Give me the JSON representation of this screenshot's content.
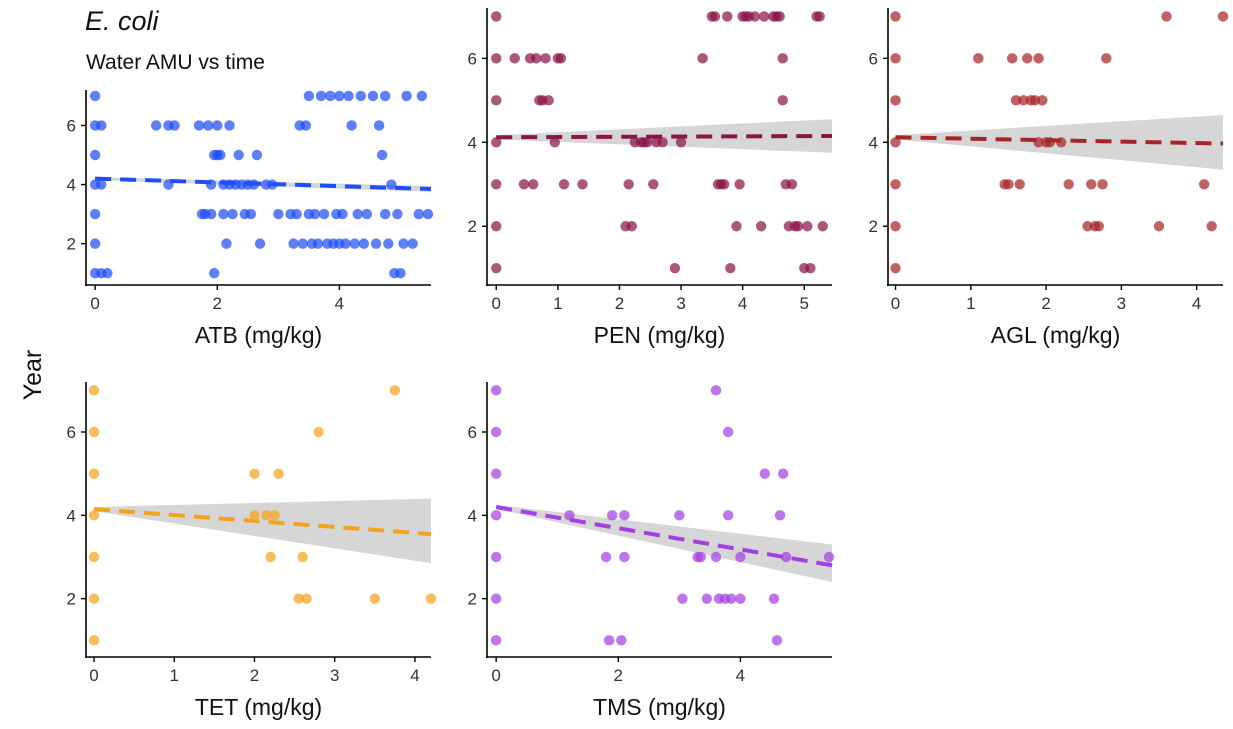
{
  "figure": {
    "title": "E. coli",
    "subtitle": "Water AMU vs time",
    "ylabel": "Year"
  },
  "chart_data": [
    {
      "type": "scatter",
      "name": "ATB",
      "xlabel": "ATB (mg/kg)",
      "ylabel": "Year",
      "color": "#1f4ef5",
      "xlim": [
        -0.15,
        5.5
      ],
      "ylim": [
        0.6,
        7.2
      ],
      "xticks": [
        0,
        2,
        4
      ],
      "yticks": [
        2,
        4,
        6
      ],
      "trend": {
        "x0": 0,
        "y0": 4.2,
        "x1": 5.5,
        "y1": 3.85,
        "ci_low_end": 3.75,
        "ci_high_end": 3.95
      },
      "points": [
        [
          0,
          7
        ],
        [
          0,
          6
        ],
        [
          0,
          5
        ],
        [
          0,
          4
        ],
        [
          0,
          3
        ],
        [
          0,
          2
        ],
        [
          0,
          1
        ],
        [
          0.1,
          6
        ],
        [
          0.1,
          4
        ],
        [
          0.1,
          1
        ],
        [
          0.2,
          1
        ],
        [
          1.0,
          6
        ],
        [
          1.2,
          6
        ],
        [
          1.2,
          4
        ],
        [
          1.3,
          6
        ],
        [
          1.7,
          6
        ],
        [
          1.75,
          3
        ],
        [
          1.8,
          3
        ],
        [
          1.85,
          6
        ],
        [
          1.9,
          4
        ],
        [
          1.9,
          3
        ],
        [
          1.95,
          1
        ],
        [
          1.95,
          5
        ],
        [
          2.0,
          5
        ],
        [
          2.0,
          6
        ],
        [
          2.05,
          5
        ],
        [
          2.1,
          4
        ],
        [
          2.1,
          3
        ],
        [
          2.15,
          2
        ],
        [
          2.2,
          6
        ],
        [
          2.2,
          4
        ],
        [
          2.25,
          3
        ],
        [
          2.3,
          4
        ],
        [
          2.35,
          5
        ],
        [
          2.4,
          4
        ],
        [
          2.45,
          3
        ],
        [
          2.5,
          4
        ],
        [
          2.55,
          3
        ],
        [
          2.6,
          4
        ],
        [
          2.65,
          5
        ],
        [
          2.7,
          2
        ],
        [
          2.8,
          4
        ],
        [
          2.9,
          4
        ],
        [
          3.0,
          3
        ],
        [
          3.2,
          3
        ],
        [
          3.25,
          2
        ],
        [
          3.3,
          3
        ],
        [
          3.35,
          6
        ],
        [
          3.4,
          2
        ],
        [
          3.45,
          6
        ],
        [
          3.5,
          3
        ],
        [
          3.5,
          7
        ],
        [
          3.55,
          2
        ],
        [
          3.6,
          3
        ],
        [
          3.65,
          2
        ],
        [
          3.7,
          7
        ],
        [
          3.75,
          3
        ],
        [
          3.8,
          2
        ],
        [
          3.85,
          7
        ],
        [
          3.9,
          2
        ],
        [
          3.95,
          3
        ],
        [
          4.0,
          7
        ],
        [
          4.0,
          2
        ],
        [
          4.05,
          3
        ],
        [
          4.1,
          2
        ],
        [
          4.15,
          7
        ],
        [
          4.2,
          6
        ],
        [
          4.25,
          2
        ],
        [
          4.3,
          3
        ],
        [
          4.35,
          7
        ],
        [
          4.4,
          2
        ],
        [
          4.45,
          3
        ],
        [
          4.55,
          7
        ],
        [
          4.6,
          2
        ],
        [
          4.65,
          6
        ],
        [
          4.7,
          5
        ],
        [
          4.75,
          3
        ],
        [
          4.75,
          7
        ],
        [
          4.8,
          2
        ],
        [
          4.85,
          4
        ],
        [
          4.9,
          1
        ],
        [
          4.95,
          3
        ],
        [
          5.0,
          1
        ],
        [
          5.05,
          2
        ],
        [
          5.1,
          7
        ],
        [
          5.2,
          2
        ],
        [
          5.3,
          3
        ],
        [
          5.35,
          7
        ],
        [
          5.45,
          3
        ]
      ]
    },
    {
      "type": "scatter",
      "name": "PEN",
      "xlabel": "PEN (mg/kg)",
      "ylabel": "Year",
      "color": "#8b1548",
      "xlim": [
        -0.15,
        5.45
      ],
      "ylim": [
        0.6,
        7.2
      ],
      "xticks": [
        0,
        1,
        2,
        3,
        4,
        5
      ],
      "yticks": [
        2,
        4,
        6
      ],
      "trend": {
        "x0": 0,
        "y0": 4.12,
        "x1": 5.45,
        "y1": 4.15,
        "ci_low_end": 3.75,
        "ci_high_end": 4.55
      },
      "points": [
        [
          0,
          7
        ],
        [
          0,
          6
        ],
        [
          0,
          5
        ],
        [
          0,
          4
        ],
        [
          0,
          3
        ],
        [
          0,
          2
        ],
        [
          0,
          1
        ],
        [
          0.3,
          6
        ],
        [
          0.45,
          3
        ],
        [
          0.55,
          6
        ],
        [
          0.6,
          3
        ],
        [
          0.65,
          6
        ],
        [
          0.7,
          5
        ],
        [
          0.75,
          5
        ],
        [
          0.8,
          6
        ],
        [
          0.85,
          5
        ],
        [
          0.95,
          4
        ],
        [
          1.0,
          6
        ],
        [
          1.05,
          6
        ],
        [
          1.1,
          3
        ],
        [
          1.4,
          3
        ],
        [
          2.1,
          2
        ],
        [
          2.15,
          3
        ],
        [
          2.2,
          2
        ],
        [
          2.25,
          4
        ],
        [
          2.35,
          4
        ],
        [
          2.4,
          4
        ],
        [
          2.45,
          4
        ],
        [
          2.55,
          3
        ],
        [
          2.6,
          4
        ],
        [
          2.7,
          4
        ],
        [
          2.9,
          1
        ],
        [
          3.0,
          4
        ],
        [
          3.35,
          6
        ],
        [
          3.5,
          7
        ],
        [
          3.55,
          7
        ],
        [
          3.6,
          3
        ],
        [
          3.65,
          3
        ],
        [
          3.7,
          3
        ],
        [
          3.75,
          7
        ],
        [
          3.8,
          1
        ],
        [
          3.9,
          2
        ],
        [
          3.95,
          3
        ],
        [
          4.0,
          7
        ],
        [
          4.05,
          7
        ],
        [
          4.1,
          7
        ],
        [
          4.2,
          7
        ],
        [
          4.3,
          2
        ],
        [
          4.35,
          7
        ],
        [
          4.5,
          7
        ],
        [
          4.55,
          7
        ],
        [
          4.6,
          7
        ],
        [
          4.65,
          6
        ],
        [
          4.65,
          5
        ],
        [
          4.7,
          3
        ],
        [
          4.75,
          2
        ],
        [
          4.8,
          3
        ],
        [
          4.85,
          2
        ],
        [
          4.9,
          2
        ],
        [
          5.0,
          1
        ],
        [
          5.05,
          2
        ],
        [
          5.1,
          1
        ],
        [
          5.2,
          7
        ],
        [
          5.25,
          7
        ],
        [
          5.3,
          2
        ]
      ]
    },
    {
      "type": "scatter",
      "name": "AGL",
      "xlabel": "AGL (mg/kg)",
      "ylabel": "Year",
      "color": "#a82428",
      "xlim": [
        -0.1,
        4.35
      ],
      "ylim": [
        0.6,
        7.2
      ],
      "xticks": [
        0,
        1,
        2,
        3,
        4
      ],
      "yticks": [
        2,
        4,
        6
      ],
      "trend": {
        "x0": 0,
        "y0": 4.12,
        "x1": 4.35,
        "y1": 3.97,
        "ci_low_end": 3.35,
        "ci_high_end": 4.65
      },
      "points": [
        [
          0,
          7
        ],
        [
          0,
          6
        ],
        [
          0,
          5
        ],
        [
          0,
          4
        ],
        [
          0,
          3
        ],
        [
          0,
          2
        ],
        [
          0,
          1
        ],
        [
          1.1,
          6
        ],
        [
          1.45,
          3
        ],
        [
          1.5,
          3
        ],
        [
          1.55,
          6
        ],
        [
          1.6,
          5
        ],
        [
          1.65,
          3
        ],
        [
          1.7,
          5
        ],
        [
          1.75,
          6
        ],
        [
          1.8,
          5
        ],
        [
          1.85,
          5
        ],
        [
          1.9,
          6
        ],
        [
          1.95,
          5
        ],
        [
          1.9,
          4
        ],
        [
          2.0,
          4
        ],
        [
          2.05,
          4
        ],
        [
          2.2,
          4
        ],
        [
          2.3,
          3
        ],
        [
          2.55,
          2
        ],
        [
          2.6,
          3
        ],
        [
          2.65,
          2
        ],
        [
          2.7,
          2
        ],
        [
          2.75,
          3
        ],
        [
          2.8,
          6
        ],
        [
          3.5,
          2
        ],
        [
          3.6,
          7
        ],
        [
          4.1,
          3
        ],
        [
          4.2,
          2
        ],
        [
          4.35,
          7
        ]
      ]
    },
    {
      "type": "scatter",
      "name": "TET",
      "xlabel": "TET (mg/kg)",
      "ylabel": "Year",
      "color": "#f5a21c",
      "xlim": [
        -0.1,
        4.2
      ],
      "ylim": [
        0.6,
        7.2
      ],
      "xticks": [
        0,
        1,
        2,
        3,
        4
      ],
      "yticks": [
        2,
        4,
        6
      ],
      "trend": {
        "x0": 0,
        "y0": 4.15,
        "x1": 4.2,
        "y1": 3.55,
        "ci_low_end": 2.85,
        "ci_high_end": 4.4
      },
      "points": [
        [
          0,
          7
        ],
        [
          0,
          6
        ],
        [
          0,
          5
        ],
        [
          0,
          4
        ],
        [
          0,
          3
        ],
        [
          0,
          2
        ],
        [
          0,
          1
        ],
        [
          2.0,
          5
        ],
        [
          2.0,
          4
        ],
        [
          2.15,
          4
        ],
        [
          2.2,
          3
        ],
        [
          2.25,
          4
        ],
        [
          2.3,
          5
        ],
        [
          2.55,
          2
        ],
        [
          2.6,
          3
        ],
        [
          2.65,
          2
        ],
        [
          2.8,
          6
        ],
        [
          3.5,
          2
        ],
        [
          3.75,
          7
        ],
        [
          4.2,
          2
        ]
      ]
    },
    {
      "type": "scatter",
      "name": "TMS",
      "xlabel": "TMS (mg/kg)",
      "ylabel": "Year",
      "color": "#a53ee3",
      "xlim": [
        -0.15,
        5.5
      ],
      "ylim": [
        0.6,
        7.2
      ],
      "xticks": [
        0,
        2,
        4
      ],
      "yticks": [
        2,
        4,
        6
      ],
      "trend": {
        "x0": 0,
        "y0": 4.2,
        "x1": 5.5,
        "y1": 2.8,
        "ci_low_end": 2.4,
        "ci_high_end": 3.3
      },
      "points": [
        [
          0,
          7
        ],
        [
          0,
          6
        ],
        [
          0,
          5
        ],
        [
          0,
          4
        ],
        [
          0,
          3
        ],
        [
          0,
          2
        ],
        [
          0,
          1
        ],
        [
          1.2,
          4
        ],
        [
          1.8,
          3
        ],
        [
          1.85,
          1
        ],
        [
          1.9,
          4
        ],
        [
          2.05,
          1
        ],
        [
          2.1,
          4
        ],
        [
          2.1,
          3
        ],
        [
          3.0,
          4
        ],
        [
          3.05,
          2
        ],
        [
          3.3,
          3
        ],
        [
          3.35,
          3
        ],
        [
          3.45,
          2
        ],
        [
          3.6,
          3
        ],
        [
          3.6,
          7
        ],
        [
          3.65,
          2
        ],
        [
          3.75,
          2
        ],
        [
          3.8,
          6
        ],
        [
          3.8,
          4
        ],
        [
          3.85,
          2
        ],
        [
          4.0,
          2
        ],
        [
          4.0,
          3
        ],
        [
          4.4,
          5
        ],
        [
          4.55,
          2
        ],
        [
          4.6,
          1
        ],
        [
          4.65,
          4
        ],
        [
          4.7,
          5
        ],
        [
          4.75,
          3
        ],
        [
          5.45,
          3
        ]
      ]
    }
  ]
}
